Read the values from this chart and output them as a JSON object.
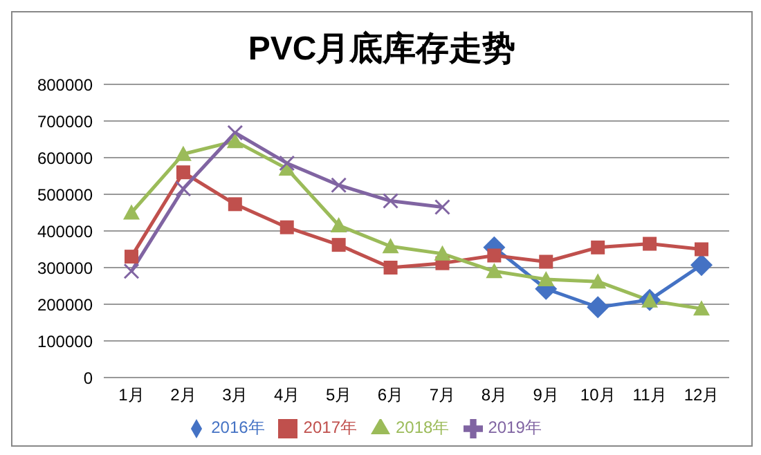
{
  "chart_data": {
    "type": "line",
    "title": "PVC月底库存走势",
    "categories": [
      "1月",
      "2月",
      "3月",
      "4月",
      "5月",
      "6月",
      "7月",
      "8月",
      "9月",
      "10月",
      "11月",
      "12月"
    ],
    "series": [
      {
        "name": "2016年",
        "color": "#4472c4",
        "marker": "diamond",
        "values": [
          null,
          null,
          null,
          null,
          null,
          null,
          null,
          355000,
          242000,
          192000,
          212000,
          307000
        ]
      },
      {
        "name": "2017年",
        "color": "#c0504d",
        "marker": "square",
        "values": [
          330000,
          560000,
          473000,
          410000,
          362000,
          300000,
          312000,
          333000,
          316000,
          355000,
          365000,
          350000
        ]
      },
      {
        "name": "2018年",
        "color": "#9bbb59",
        "marker": "triangle",
        "values": [
          450000,
          610000,
          645000,
          570000,
          415000,
          358000,
          338000,
          290000,
          268000,
          262000,
          210000,
          188000
        ]
      },
      {
        "name": "2019年",
        "color": "#8064a2",
        "marker": "cross",
        "values": [
          290000,
          515000,
          668000,
          585000,
          525000,
          482000,
          465000,
          null,
          null,
          null,
          null,
          null
        ]
      }
    ],
    "ylim": [
      0,
      800000
    ],
    "yticks": [
      0,
      100000,
      200000,
      300000,
      400000,
      500000,
      600000,
      700000,
      800000
    ],
    "grid": "y",
    "legend": "bottom"
  }
}
